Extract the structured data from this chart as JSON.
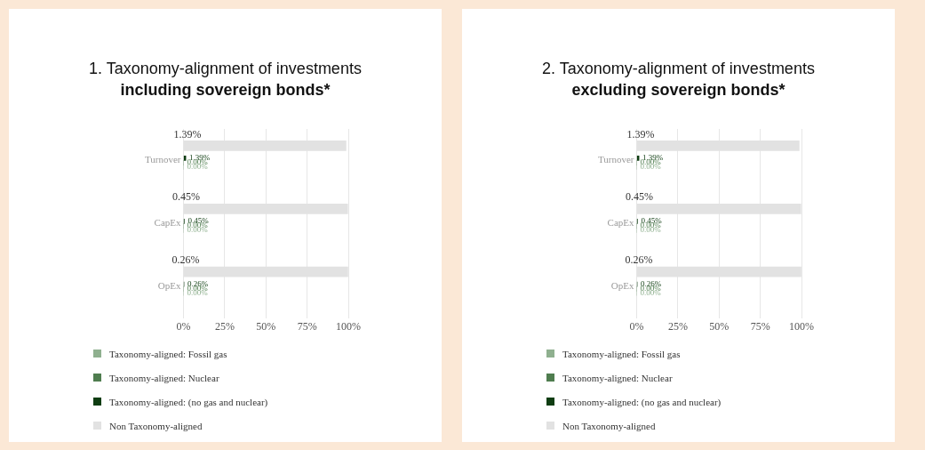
{
  "chart_data": [
    {
      "type": "bar",
      "title": "1. Taxonomy-alignment of investments",
      "subtitle": "including sovereign bonds*",
      "orientation": "horizontal",
      "categories": [
        "Turnover",
        "CapEx",
        "OpEx"
      ],
      "series": [
        {
          "name": "Non Taxonomy-aligned",
          "color": "#e2e2e2",
          "values": [
            98.6,
            99.6,
            99.7
          ]
        },
        {
          "name": "Taxonomy-aligned: (no gas and nuclear)",
          "color": "#0f3d12",
          "values": [
            1.39,
            0.45,
            0.26
          ],
          "value_labels": [
            "1.39%",
            "0.45%",
            "0.26%"
          ]
        },
        {
          "name": "Taxonomy-aligned: Nuclear",
          "color": "#4f7d4f",
          "values": [
            0,
            0,
            0
          ],
          "value_labels": [
            "0.00%",
            "0.00%",
            "0.00%"
          ]
        },
        {
          "name": "Taxonomy-aligned: Fossil gas",
          "color": "#8fb08f",
          "values": [
            0,
            0,
            0
          ],
          "value_labels": [
            "0.00%",
            "0.00%",
            "0.00%"
          ]
        }
      ],
      "xlim": [
        0,
        100
      ],
      "xticks": [
        {
          "value": 0,
          "label": "0%"
        },
        {
          "value": 25,
          "label": "25%"
        },
        {
          "value": 50,
          "label": "50%"
        },
        {
          "value": 75,
          "label": "75%"
        },
        {
          "value": 100,
          "label": "100%"
        }
      ],
      "grid": "x",
      "legend": "bottom left",
      "annotations": [
        {
          "text": "1.39%",
          "x": 1.39,
          "y": "Turnover"
        },
        {
          "text": "0.45%",
          "x": 0.45,
          "y": "CapEx"
        },
        {
          "text": "0.26%",
          "x": 0.26,
          "y": "OpEx"
        }
      ]
    },
    {
      "type": "bar",
      "title": "2. Taxonomy-alignment of investments",
      "subtitle": "excluding sovereign bonds*",
      "orientation": "horizontal",
      "categories": [
        "Turnover",
        "CapEx",
        "OpEx"
      ],
      "series": [
        {
          "name": "Non Taxonomy-aligned",
          "color": "#e2e2e2",
          "values": [
            98.6,
            99.6,
            99.7
          ]
        },
        {
          "name": "Taxonomy-aligned: (no gas and nuclear)",
          "color": "#0f3d12",
          "values": [
            1.39,
            0.45,
            0.26
          ],
          "value_labels": [
            "1.39%",
            "0.45%",
            "0.26%"
          ]
        },
        {
          "name": "Taxonomy-aligned: Nuclear",
          "color": "#4f7d4f",
          "values": [
            0,
            0,
            0
          ],
          "value_labels": [
            "0.00%",
            "0.00%",
            "0.00%"
          ]
        },
        {
          "name": "Taxonomy-aligned: Fossil gas",
          "color": "#8fb08f",
          "values": [
            0,
            0,
            0
          ],
          "value_labels": [
            "0.00%",
            "0.00%",
            "0.00%"
          ]
        }
      ],
      "xlim": [
        0,
        100
      ],
      "xticks": [
        {
          "value": 0,
          "label": "0%"
        },
        {
          "value": 25,
          "label": "25%"
        },
        {
          "value": 50,
          "label": "50%"
        },
        {
          "value": 75,
          "label": "75%"
        },
        {
          "value": 100,
          "label": "100%"
        }
      ],
      "grid": "x",
      "legend": "bottom left",
      "annotations": [
        {
          "text": "1.39%",
          "x": 1.39,
          "y": "Turnover"
        },
        {
          "text": "0.45%",
          "x": 0.45,
          "y": "CapEx"
        },
        {
          "text": "0.26%",
          "x": 0.26,
          "y": "OpEx"
        }
      ]
    }
  ]
}
